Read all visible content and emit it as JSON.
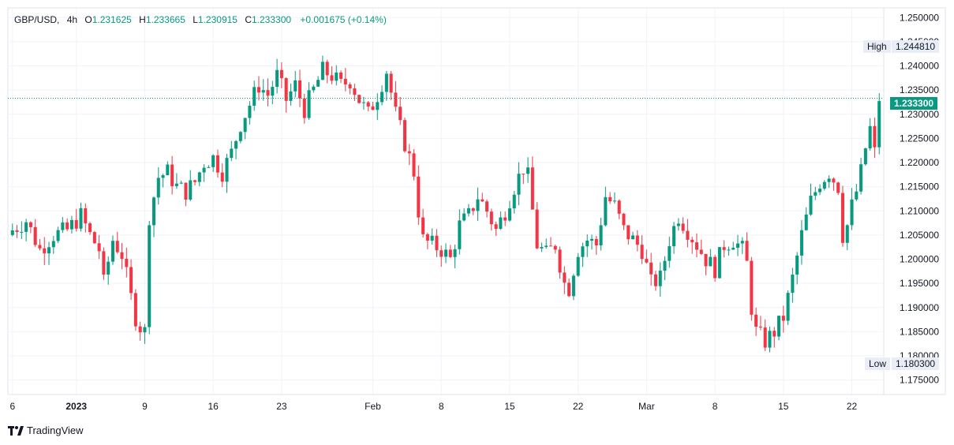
{
  "header": {
    "symbol": "GBP/USD",
    "interval": "4h",
    "open_label": "O",
    "open": "1.231625",
    "high_label": "H",
    "high": "1.233665",
    "low_label": "L",
    "low": "1.230915",
    "close_label": "C",
    "close": "1.233300",
    "change": "+0.001675 (+0.14%)"
  },
  "badges": {
    "high_label": "High",
    "high_value": "1.244810",
    "low_label": "Low",
    "low_value": "1.180300",
    "last_price": "1.233300"
  },
  "branding": {
    "name": "TradingView",
    "logo_icon": "tradingview-logo-icon"
  },
  "colors": {
    "up": "#089981",
    "down": "#f23645",
    "grid": "#f0f3fa",
    "price_line": "#089981"
  },
  "chart_data": {
    "type": "candlestick",
    "title": "GBP/USD, 4h",
    "ylim": [
      1.172,
      1.252
    ],
    "y_ticks": [
      "1.250000",
      "1.245000",
      "1.240000",
      "1.235000",
      "1.230000",
      "1.225000",
      "1.220000",
      "1.215000",
      "1.210000",
      "1.205000",
      "1.200000",
      "1.195000",
      "1.190000",
      "1.185000",
      "1.180000",
      "1.175000"
    ],
    "x_ticks": [
      {
        "label": "6",
        "x": 0
      },
      {
        "label": "2023",
        "x": 14
      },
      {
        "label": "9",
        "x": 29
      },
      {
        "label": "16",
        "x": 44
      },
      {
        "label": "23",
        "x": 59
      },
      {
        "label": "Feb",
        "x": 79
      },
      {
        "label": "8",
        "x": 94
      },
      {
        "label": "15",
        "x": 109
      },
      {
        "label": "22",
        "x": 124
      },
      {
        "label": "Mar",
        "x": 139
      },
      {
        "label": "8",
        "x": 154
      },
      {
        "label": "15",
        "x": 169
      },
      {
        "label": "22",
        "x": 184
      }
    ],
    "x_range": [
      -1,
      191
    ],
    "high_marker": 1.24481,
    "low_marker": 1.1803,
    "last_price": 1.2333,
    "close_points": [
      {
        "x": 0,
        "c": 1.206
      },
      {
        "x": 3,
        "c": 1.208
      },
      {
        "x": 6,
        "c": 1.202
      },
      {
        "x": 9,
        "c": 1.205
      },
      {
        "x": 12,
        "c": 1.206
      },
      {
        "x": 15,
        "c": 1.209
      },
      {
        "x": 17,
        "c": 1.205
      },
      {
        "x": 19,
        "c": 1.202
      },
      {
        "x": 20,
        "c": 1.195
      },
      {
        "x": 22,
        "c": 1.204
      },
      {
        "x": 24,
        "c": 1.201
      },
      {
        "x": 26,
        "c": 1.192
      },
      {
        "x": 27,
        "c": 1.188
      },
      {
        "x": 28,
        "c": 1.186
      },
      {
        "x": 29,
        "c": 1.185
      },
      {
        "x": 30,
        "c": 1.209
      },
      {
        "x": 32,
        "c": 1.217
      },
      {
        "x": 34,
        "c": 1.218
      },
      {
        "x": 36,
        "c": 1.215
      },
      {
        "x": 38,
        "c": 1.214
      },
      {
        "x": 40,
        "c": 1.216
      },
      {
        "x": 42,
        "c": 1.22
      },
      {
        "x": 44,
        "c": 1.221
      },
      {
        "x": 46,
        "c": 1.218
      },
      {
        "x": 48,
        "c": 1.222
      },
      {
        "x": 50,
        "c": 1.228
      },
      {
        "x": 52,
        "c": 1.232
      },
      {
        "x": 54,
        "c": 1.236
      },
      {
        "x": 56,
        "c": 1.234
      },
      {
        "x": 58,
        "c": 1.238
      },
      {
        "x": 60,
        "c": 1.233
      },
      {
        "x": 62,
        "c": 1.236
      },
      {
        "x": 64,
        "c": 1.231
      },
      {
        "x": 66,
        "c": 1.235
      },
      {
        "x": 68,
        "c": 1.239
      },
      {
        "x": 70,
        "c": 1.238
      },
      {
        "x": 72,
        "c": 1.236
      },
      {
        "x": 74,
        "c": 1.237
      },
      {
        "x": 76,
        "c": 1.233
      },
      {
        "x": 78,
        "c": 1.23
      },
      {
        "x": 80,
        "c": 1.234
      },
      {
        "x": 82,
        "c": 1.239
      },
      {
        "x": 84,
        "c": 1.23
      },
      {
        "x": 86,
        "c": 1.224
      },
      {
        "x": 88,
        "c": 1.218
      },
      {
        "x": 89,
        "c": 1.21
      },
      {
        "x": 90,
        "c": 1.204
      },
      {
        "x": 92,
        "c": 1.203
      },
      {
        "x": 94,
        "c": 1.202
      },
      {
        "x": 96,
        "c": 1.2
      },
      {
        "x": 98,
        "c": 1.207
      },
      {
        "x": 100,
        "c": 1.209
      },
      {
        "x": 102,
        "c": 1.213
      },
      {
        "x": 104,
        "c": 1.21
      },
      {
        "x": 106,
        "c": 1.206
      },
      {
        "x": 108,
        "c": 1.21
      },
      {
        "x": 110,
        "c": 1.215
      },
      {
        "x": 112,
        "c": 1.219
      },
      {
        "x": 113,
        "c": 1.217
      },
      {
        "x": 115,
        "c": 1.203
      },
      {
        "x": 117,
        "c": 1.201
      },
      {
        "x": 119,
        "c": 1.203
      },
      {
        "x": 121,
        "c": 1.195
      },
      {
        "x": 122,
        "c": 1.194
      },
      {
        "x": 124,
        "c": 1.202
      },
      {
        "x": 126,
        "c": 1.204
      },
      {
        "x": 128,
        "c": 1.203
      },
      {
        "x": 130,
        "c": 1.213
      },
      {
        "x": 132,
        "c": 1.211
      },
      {
        "x": 134,
        "c": 1.206
      },
      {
        "x": 136,
        "c": 1.204
      },
      {
        "x": 138,
        "c": 1.202
      },
      {
        "x": 140,
        "c": 1.195
      },
      {
        "x": 142,
        "c": 1.196
      },
      {
        "x": 144,
        "c": 1.204
      },
      {
        "x": 146,
        "c": 1.209
      },
      {
        "x": 148,
        "c": 1.206
      },
      {
        "x": 150,
        "c": 1.203
      },
      {
        "x": 152,
        "c": 1.2
      },
      {
        "x": 154,
        "c": 1.198
      },
      {
        "x": 156,
        "c": 1.203
      },
      {
        "x": 158,
        "c": 1.204
      },
      {
        "x": 160,
        "c": 1.202
      },
      {
        "x": 161,
        "c": 1.199
      },
      {
        "x": 162,
        "c": 1.19
      },
      {
        "x": 163,
        "c": 1.185
      },
      {
        "x": 165,
        "c": 1.183
      },
      {
        "x": 167,
        "c": 1.185
      },
      {
        "x": 169,
        "c": 1.188
      },
      {
        "x": 171,
        "c": 1.196
      },
      {
        "x": 173,
        "c": 1.205
      },
      {
        "x": 175,
        "c": 1.212
      },
      {
        "x": 177,
        "c": 1.216
      },
      {
        "x": 179,
        "c": 1.218
      },
      {
        "x": 181,
        "c": 1.215
      },
      {
        "x": 182,
        "c": 1.205
      },
      {
        "x": 183,
        "c": 1.207
      },
      {
        "x": 184,
        "c": 1.211
      },
      {
        "x": 185,
        "c": 1.214
      },
      {
        "x": 186,
        "c": 1.218
      },
      {
        "x": 187,
        "c": 1.223
      },
      {
        "x": 188,
        "c": 1.227
      },
      {
        "x": 189,
        "c": 1.222
      },
      {
        "x": 190,
        "c": 1.2333
      }
    ]
  }
}
